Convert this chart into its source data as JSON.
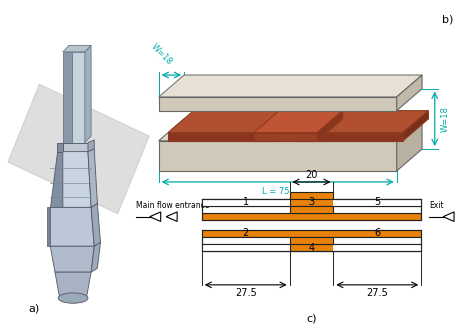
{
  "title_a": "a)",
  "title_b": "b)",
  "title_c": "c)",
  "orange_color": "#E8820A",
  "channel_border": "#222222",
  "dim_color": "#00AAAA",
  "copper_brown": "#A0522D",
  "glass_top": "#D8CFC0",
  "glass_side": "#C0B8A8",
  "glass_front": "#C8C0B0",
  "label_fontsize": 7,
  "dim_fontsize": 6,
  "sub_label_fontsize": 8
}
